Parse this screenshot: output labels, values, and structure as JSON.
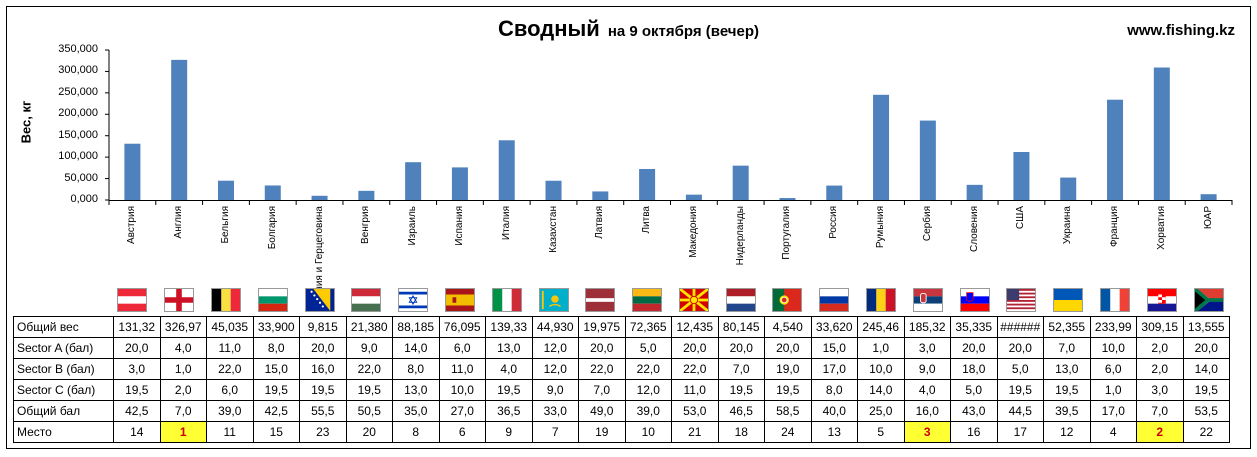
{
  "title": "Сводный",
  "subtitle": "на 9 октября (вечер)",
  "website": "www.fishing.kz",
  "ylabel": "Вес, кг",
  "chart_data": {
    "type": "bar",
    "title": "Сводный",
    "subtitle": "на 9 октября (вечер)",
    "ylabel": "Вес, кг",
    "xlabel": "",
    "ylim": [
      0,
      350000
    ],
    "yticks": [
      "0,000",
      "50,000",
      "100,000",
      "150,000",
      "200,000",
      "250,000",
      "300,000",
      "350,000"
    ],
    "grid": false,
    "bar_color": "#4f81bd",
    "categories": [
      "Австрия",
      "Англия",
      "Бельгия",
      "Болгария",
      "Босния и Герцеговина",
      "Венгрия",
      "Израиль",
      "Испания",
      "Италия",
      "Казахстан",
      "Латвия",
      "Литва",
      "Македония",
      "Нидерланды",
      "Португалия",
      "Россия",
      "Румыния",
      "Сербия",
      "Словения",
      "США",
      "Украина",
      "Франция",
      "Хорватия",
      "ЮАР"
    ],
    "values": [
      131320,
      326970,
      45035,
      33900,
      9815,
      21380,
      88185,
      76095,
      139330,
      44930,
      19975,
      72365,
      12435,
      80145,
      4540,
      33620,
      245460,
      185320,
      35335,
      112000,
      52355,
      233990,
      309150,
      13555
    ]
  },
  "flags": [
    "austria-flag",
    "england-flag",
    "belgium-flag",
    "bulgaria-flag",
    "bosnia-flag",
    "hungary-flag",
    "israel-flag",
    "spain-flag",
    "italy-flag",
    "kazakhstan-flag",
    "latvia-flag",
    "lithuania-flag",
    "macedonia-flag",
    "netherlands-flag",
    "portugal-flag",
    "russia-flag",
    "romania-flag",
    "serbia-flag",
    "slovenia-flag",
    "usa-flag",
    "ukraine-flag",
    "france-flag",
    "croatia-flag",
    "south-africa-flag"
  ],
  "table": {
    "rows": [
      {
        "label": "Общий вес",
        "values": [
          "131,32",
          "326,97",
          "45,035",
          "33,900",
          "9,815",
          "21,380",
          "88,185",
          "76,095",
          "139,33",
          "44,930",
          "19,975",
          "72,365",
          "12,435",
          "80,145",
          "4,540",
          "33,620",
          "245,46",
          "185,32",
          "35,335",
          "######",
          "52,355",
          "233,99",
          "309,15",
          "13,555"
        ]
      },
      {
        "label": "Sector A (бал)",
        "values": [
          "20,0",
          "4,0",
          "11,0",
          "8,0",
          "20,0",
          "9,0",
          "14,0",
          "6,0",
          "13,0",
          "12,0",
          "20,0",
          "5,0",
          "20,0",
          "20,0",
          "20,0",
          "15,0",
          "1,0",
          "3,0",
          "20,0",
          "20,0",
          "7,0",
          "10,0",
          "2,0",
          "20,0"
        ]
      },
      {
        "label": "Sector B (бал)",
        "values": [
          "3,0",
          "1,0",
          "22,0",
          "15,0",
          "16,0",
          "22,0",
          "8,0",
          "11,0",
          "4,0",
          "12,0",
          "22,0",
          "22,0",
          "22,0",
          "7,0",
          "19,0",
          "17,0",
          "10,0",
          "9,0",
          "18,0",
          "5,0",
          "13,0",
          "6,0",
          "2,0",
          "14,0"
        ]
      },
      {
        "label": "Sector C (бал)",
        "values": [
          "19,5",
          "2,0",
          "6,0",
          "19,5",
          "19,5",
          "19,5",
          "13,0",
          "10,0",
          "19,5",
          "9,0",
          "7,0",
          "12,0",
          "11,0",
          "19,5",
          "19,5",
          "8,0",
          "14,0",
          "4,0",
          "5,0",
          "19,5",
          "19,5",
          "1,0",
          "3,0",
          "19,5"
        ]
      },
      {
        "label": "Общий бал",
        "values": [
          "42,5",
          "7,0",
          "39,0",
          "42,5",
          "55,5",
          "50,5",
          "35,0",
          "27,0",
          "36,5",
          "33,0",
          "49,0",
          "39,0",
          "53,0",
          "46,5",
          "58,5",
          "40,0",
          "25,0",
          "16,0",
          "43,0",
          "44,5",
          "39,5",
          "17,0",
          "7,0",
          "53,5"
        ]
      },
      {
        "label": "Место",
        "values": [
          "14",
          "1",
          "11",
          "15",
          "23",
          "20",
          "8",
          "6",
          "9",
          "7",
          "19",
          "10",
          "21",
          "18",
          "24",
          "13",
          "5",
          "3",
          "16",
          "17",
          "12",
          "4",
          "2",
          "22"
        ]
      }
    ],
    "highlight_places": [
      "1",
      "2",
      "3"
    ],
    "highlight_color": "#ffff33",
    "highlight_text_color": "#d00000"
  }
}
